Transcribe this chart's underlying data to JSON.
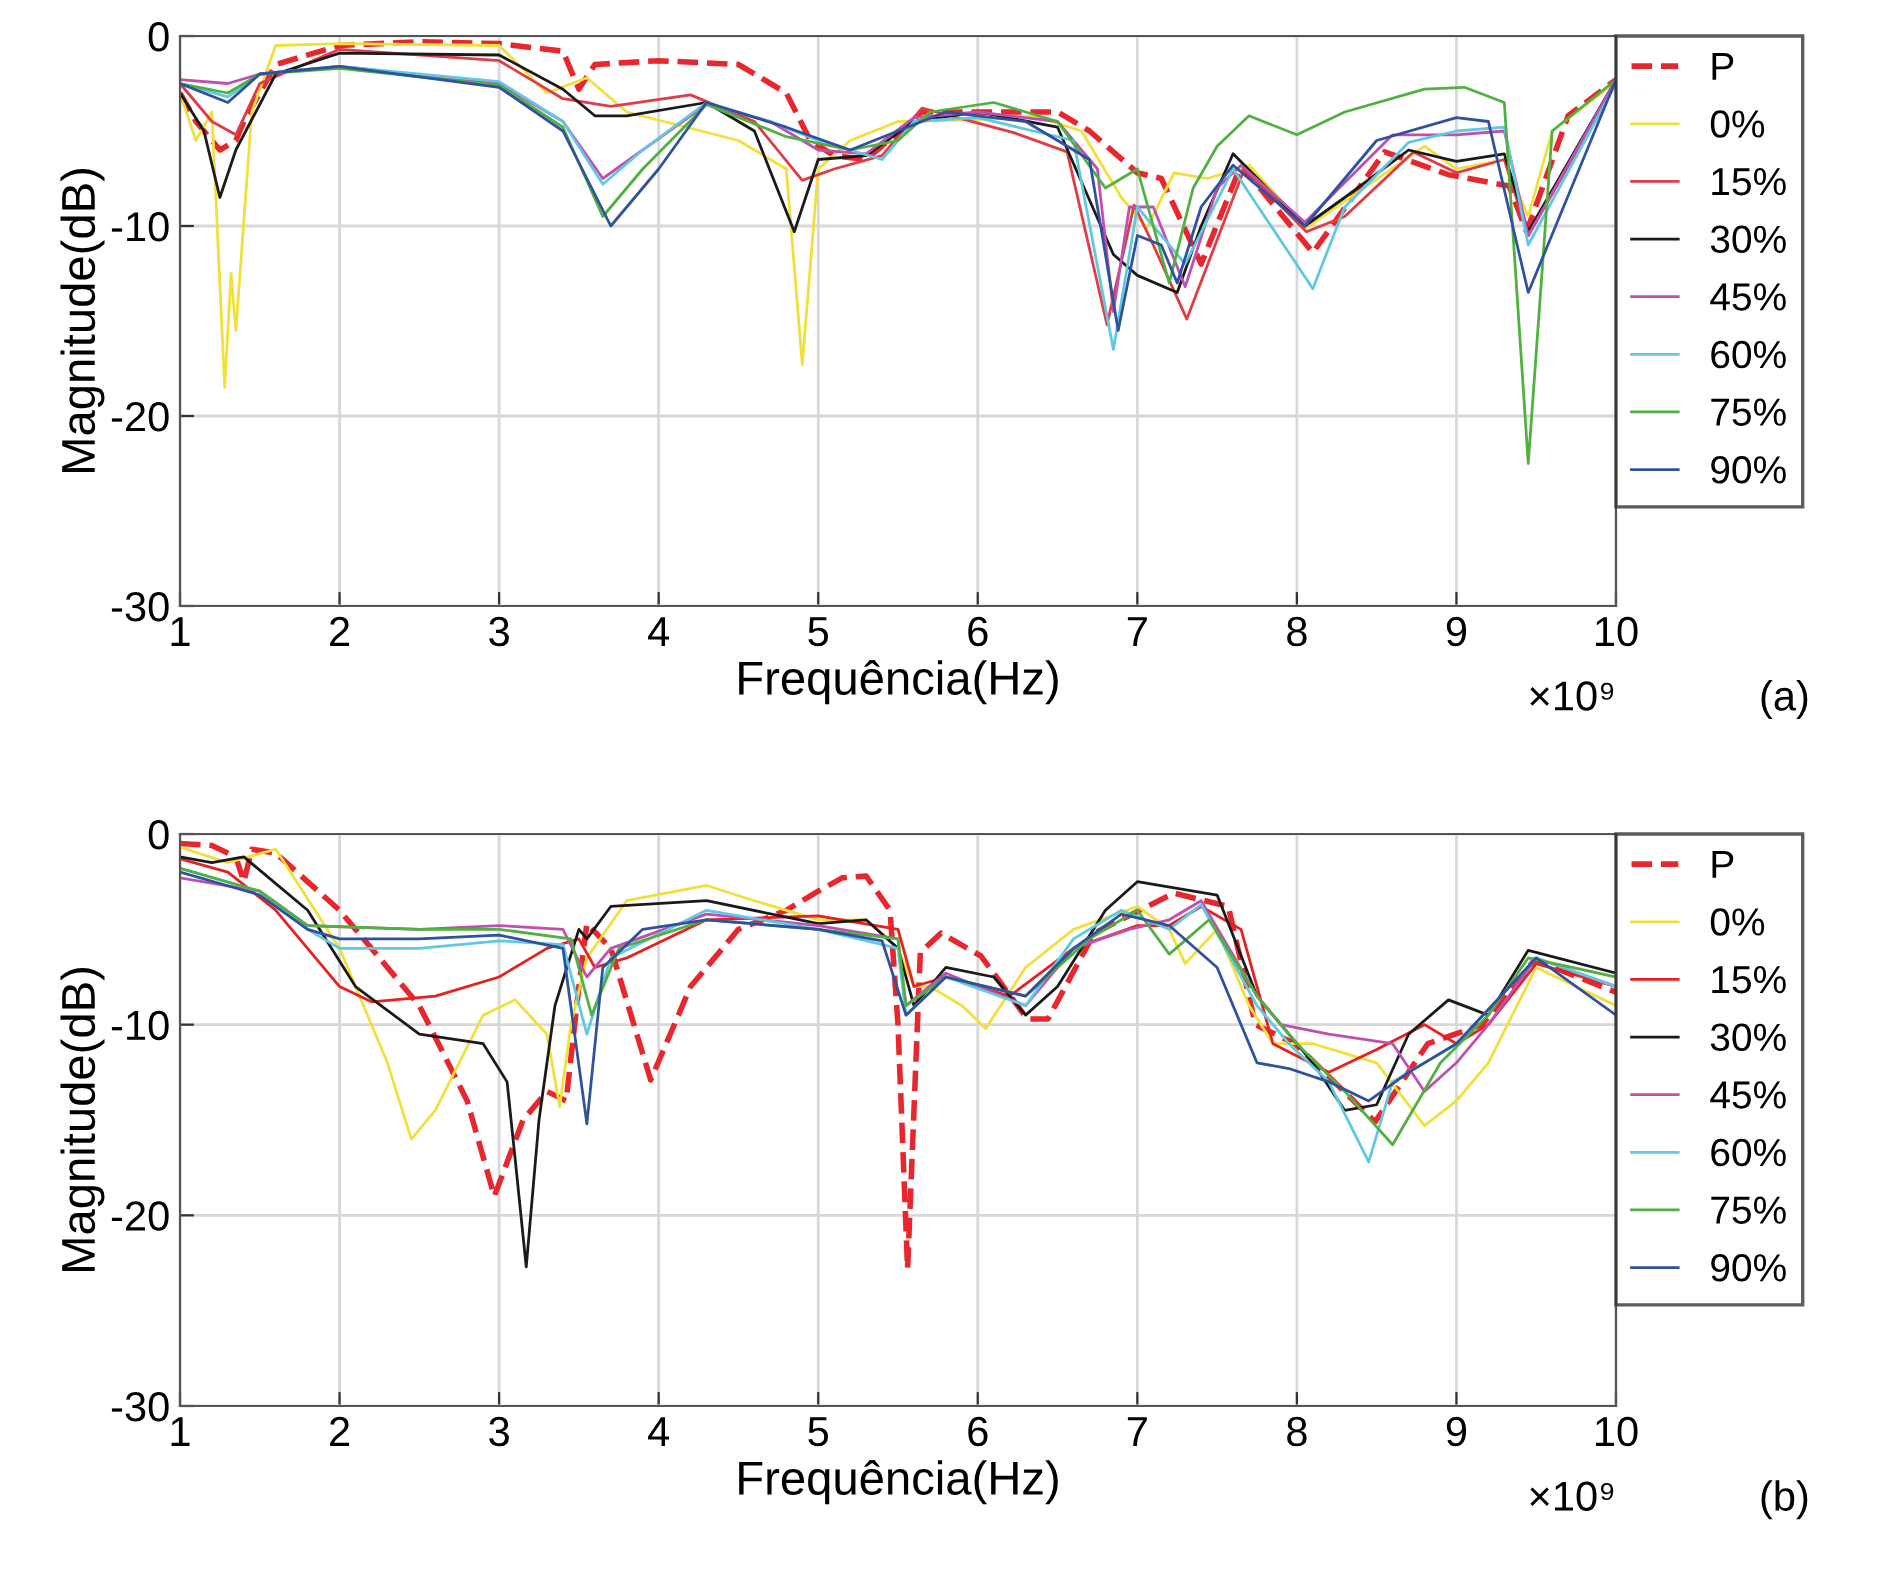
{
  "chart_data": [
    {
      "type": "line",
      "xlabel": "Frequência(Hz)",
      "ylabel": "Magnitude(dB)",
      "annotations": [
        "×10⁹",
        "(a)"
      ],
      "legend": "right",
      "grid": true,
      "marker": "none",
      "xlim": [
        1,
        10
      ],
      "ylim": [
        -30,
        0
      ],
      "yticks": [
        -30,
        -20,
        -10,
        0
      ],
      "xticks": [
        1,
        2,
        3,
        4,
        5,
        6,
        7,
        8,
        9,
        10
      ],
      "series": [
        {
          "name": "P",
          "color": "#e8262d",
          "line_style": "dashed",
          "x": [
            1.0,
            1.1,
            1.2,
            1.25,
            1.35,
            1.4,
            1.6,
            2.0,
            2.5,
            3.0,
            3.4,
            3.5,
            3.6,
            4.0,
            4.5,
            4.8,
            4.95,
            5.1,
            5.3,
            5.65,
            6.0,
            6.5,
            6.7,
            7.0,
            7.15,
            7.4,
            7.65,
            8.1,
            8.55,
            8.95,
            9.33,
            9.44,
            9.7,
            10.0
          ],
          "values": [
            -3,
            -4.5,
            -5.5,
            -6,
            -5.5,
            -4.5,
            -1.5,
            -0.5,
            -0.3,
            -0.4,
            -0.8,
            -2.8,
            -1.5,
            -1.3,
            -1.5,
            -3,
            -5.5,
            -6.3,
            -6.5,
            -4,
            -4,
            -4,
            -5,
            -7.2,
            -7.5,
            -12,
            -6.8,
            -11.4,
            -6.1,
            -7.3,
            -7.9,
            -10.3,
            -4.2,
            -2.3
          ]
        },
        {
          "name": "0%",
          "color": "#f2e03a",
          "line_style": "solid",
          "x": [
            1.0,
            1.1,
            1.2,
            1.28,
            1.32,
            1.35,
            1.45,
            1.6,
            2.0,
            3.0,
            3.3,
            3.55,
            3.8,
            4.5,
            4.8,
            4.9,
            5.0,
            5.2,
            5.5,
            6.0,
            6.35,
            6.65,
            6.9,
            7.06,
            7.23,
            7.44,
            7.7,
            8.06,
            8.8,
            9.0,
            9.3,
            9.45,
            9.6,
            10.0
          ],
          "values": [
            -3,
            -5.5,
            -4,
            -18.5,
            -12.5,
            -15.5,
            -4,
            -0.5,
            -0.4,
            -0.5,
            -3,
            -2.2,
            -4,
            -5.5,
            -7,
            -17.3,
            -7,
            -5.5,
            -4.5,
            -4.4,
            -4.2,
            -5,
            -8.5,
            -10.1,
            -7.2,
            -7.5,
            -6.8,
            -10.1,
            -5.8,
            -7,
            -6.5,
            -9.5,
            -5,
            -2.4
          ]
        },
        {
          "name": "15%",
          "color": "#e03c46",
          "line_style": "solid",
          "x": [
            1.0,
            1.2,
            1.35,
            1.5,
            2.0,
            3.0,
            3.4,
            3.7,
            4.2,
            4.6,
            4.9,
            5.1,
            5.4,
            5.65,
            6.23,
            6.56,
            6.81,
            6.98,
            7.1,
            7.31,
            7.67,
            8.06,
            8.3,
            8.73,
            9.0,
            9.3,
            9.45,
            10.0
          ],
          "values": [
            -2.5,
            -4.5,
            -5.2,
            -2.5,
            -0.7,
            -1.3,
            -3.3,
            -3.7,
            -3.1,
            -4.5,
            -7.6,
            -7,
            -6.3,
            -3.8,
            -5.1,
            -6.1,
            -15.2,
            -8.9,
            -11,
            -14.9,
            -7,
            -10.3,
            -9.5,
            -6.1,
            -7.2,
            -6.5,
            -10.5,
            -2.5
          ]
        },
        {
          "name": "30%",
          "color": "#1a1a1a",
          "line_style": "solid",
          "x": [
            1.0,
            1.15,
            1.25,
            1.35,
            1.6,
            2.0,
            3.0,
            3.4,
            3.6,
            3.8,
            4.3,
            4.6,
            4.85,
            5.0,
            5.3,
            5.6,
            6.0,
            6.5,
            6.85,
            7.0,
            7.25,
            7.4,
            7.6,
            8.05,
            8.3,
            8.7,
            9.0,
            9.3,
            9.45,
            10.0
          ],
          "values": [
            -3,
            -5,
            -8.5,
            -6,
            -2,
            -0.9,
            -1,
            -2.8,
            -4.2,
            -4.2,
            -3.5,
            -5,
            -10.3,
            -6.5,
            -6.3,
            -4.5,
            -4,
            -4.8,
            -11.5,
            -12.6,
            -13.5,
            -10,
            -6.2,
            -10,
            -8.5,
            -6,
            -6.6,
            -6.2,
            -10.3,
            -2.3
          ]
        },
        {
          "name": "45%",
          "color": "#c050b0",
          "line_style": "solid",
          "x": [
            1.0,
            1.3,
            1.5,
            2.0,
            3.0,
            3.4,
            3.65,
            3.9,
            4.3,
            4.7,
            5.0,
            5.3,
            5.6,
            6.0,
            6.5,
            6.75,
            6.85,
            6.95,
            7.1,
            7.3,
            7.5,
            7.65,
            8.05,
            8.6,
            9.0,
            9.3,
            9.45,
            10.0
          ],
          "values": [
            -2.3,
            -2.5,
            -2,
            -1.6,
            -2.5,
            -4.5,
            -7.5,
            -6,
            -3.6,
            -4.5,
            -6,
            -6.2,
            -4.3,
            -4,
            -4.5,
            -7,
            -14.5,
            -9,
            -9,
            -13.2,
            -8,
            -6.8,
            -9.8,
            -5.2,
            -5.2,
            -5,
            -10.5,
            -2.3
          ]
        },
        {
          "name": "60%",
          "color": "#60c8e0",
          "line_style": "solid",
          "x": [
            1.0,
            1.3,
            1.5,
            2.0,
            3.0,
            3.4,
            3.65,
            3.9,
            4.3,
            4.7,
            5.0,
            5.4,
            5.6,
            6.0,
            6.6,
            6.85,
            7.0,
            7.3,
            7.6,
            8.1,
            8.3,
            8.7,
            9.0,
            9.3,
            9.45,
            10.0
          ],
          "values": [
            -2.5,
            -3.2,
            -2,
            -1.6,
            -2.4,
            -4.5,
            -7.8,
            -6,
            -3.5,
            -4.5,
            -5.5,
            -6.5,
            -4.5,
            -4.3,
            -5.5,
            -16.5,
            -9,
            -12,
            -7,
            -13.3,
            -9,
            -5.6,
            -5,
            -4.8,
            -11,
            -2.5
          ]
        },
        {
          "name": "75%",
          "color": "#50b040",
          "line_style": "solid",
          "x": [
            1.0,
            1.3,
            1.5,
            2.0,
            3.0,
            3.4,
            3.65,
            3.9,
            4.3,
            4.8,
            5.2,
            5.5,
            5.7,
            6.1,
            6.5,
            6.8,
            7.0,
            7.2,
            7.35,
            7.5,
            7.7,
            8.0,
            8.3,
            8.8,
            9.05,
            9.3,
            9.45,
            9.6,
            10.0
          ],
          "values": [
            -2.5,
            -3,
            -2,
            -1.7,
            -2.6,
            -4.8,
            -9.5,
            -7,
            -3.6,
            -5.3,
            -6,
            -5.5,
            -4,
            -3.5,
            -4.5,
            -8,
            -7,
            -13,
            -8,
            -5.8,
            -4.2,
            -5.2,
            -4,
            -2.8,
            -2.7,
            -3.5,
            -22.5,
            -5,
            -2.3
          ]
        },
        {
          "name": "90%",
          "color": "#3050a0",
          "line_style": "solid",
          "x": [
            1.0,
            1.3,
            1.5,
            2.0,
            3.0,
            3.4,
            3.7,
            4.0,
            4.3,
            4.8,
            5.2,
            5.5,
            5.8,
            6.3,
            6.7,
            6.88,
            7.0,
            7.15,
            7.25,
            7.4,
            7.6,
            8.05,
            8.5,
            9.0,
            9.2,
            9.45,
            10.0
          ],
          "values": [
            -2.5,
            -3.5,
            -2,
            -1.6,
            -2.7,
            -5,
            -10,
            -7,
            -3.5,
            -4.8,
            -6,
            -5,
            -4,
            -4.5,
            -6.5,
            -15.5,
            -10.5,
            -11,
            -13,
            -9,
            -6.8,
            -10,
            -5.5,
            -4.3,
            -4.5,
            -13.5,
            -2.3
          ]
        }
      ]
    },
    {
      "type": "line",
      "xlabel": "Frequência(Hz)",
      "ylabel": "Magnitude(dB)",
      "annotations": [
        "×10⁹",
        "(b)"
      ],
      "legend": "right",
      "grid": true,
      "marker": "none",
      "xlim": [
        1,
        10
      ],
      "ylim": [
        -30,
        0
      ],
      "yticks": [
        -30,
        -20,
        -10,
        0
      ],
      "xticks": [
        1,
        2,
        3,
        4,
        5,
        6,
        7,
        8,
        9,
        10
      ],
      "series": [
        {
          "name": "P",
          "color": "#e8262d",
          "line_style": "dashed",
          "x": [
            1.0,
            1.2,
            1.35,
            1.4,
            1.45,
            1.6,
            2.0,
            2.5,
            2.8,
            2.97,
            3.15,
            3.3,
            3.42,
            3.5,
            3.55,
            3.7,
            3.95,
            4.2,
            4.5,
            4.8,
            5.0,
            5.15,
            5.3,
            5.45,
            5.5,
            5.56,
            5.64,
            5.77,
            6.02,
            6.31,
            6.44,
            6.73,
            7.23,
            7.57,
            7.74,
            7.99,
            8.49,
            8.82,
            9.16,
            9.49,
            10.0
          ],
          "values": [
            -0.5,
            -0.6,
            -1.2,
            -2.5,
            -0.8,
            -1,
            -4,
            -9,
            -14,
            -19,
            -15,
            -13.5,
            -14,
            -8,
            -4.7,
            -6,
            -12.9,
            -8,
            -5,
            -4,
            -3,
            -2.3,
            -2.2,
            -4,
            -10,
            -22.8,
            -6.2,
            -5.2,
            -6.4,
            -9.7,
            -9.7,
            -5.2,
            -3.1,
            -3.8,
            -10,
            -11,
            -15.1,
            -11,
            -10,
            -6.6,
            -8.3
          ]
        },
        {
          "name": "0%",
          "color": "#f2e03a",
          "line_style": "solid",
          "x": [
            1.0,
            1.3,
            1.6,
            2.0,
            2.3,
            2.45,
            2.6,
            2.9,
            3.1,
            3.3,
            3.38,
            3.45,
            3.55,
            3.8,
            4.3,
            4.6,
            5.0,
            5.3,
            5.5,
            5.6,
            5.7,
            5.9,
            6.05,
            6.3,
            6.6,
            7.0,
            7.2,
            7.3,
            7.5,
            7.7,
            7.85,
            8.1,
            8.5,
            8.8,
            9.0,
            9.2,
            9.5,
            10.0
          ],
          "values": [
            -0.7,
            -1.5,
            -0.8,
            -6,
            -12,
            -16,
            -14.5,
            -9.5,
            -8.7,
            -10.5,
            -14.3,
            -10,
            -6.5,
            -3.5,
            -2.7,
            -3.5,
            -4.5,
            -4.5,
            -6,
            -8,
            -8,
            -9,
            -10.2,
            -7,
            -5,
            -3.8,
            -5,
            -6.8,
            -5,
            -9,
            -11,
            -11,
            -12,
            -15.3,
            -14,
            -12,
            -7,
            -9
          ]
        },
        {
          "name": "15%",
          "color": "#e82020",
          "line_style": "solid",
          "x": [
            1.0,
            1.3,
            1.6,
            2.0,
            2.2,
            2.6,
            3.0,
            3.3,
            3.5,
            3.6,
            3.8,
            4.3,
            5.0,
            5.5,
            5.6,
            5.8,
            6.2,
            6.6,
            7.0,
            7.2,
            7.4,
            7.65,
            7.85,
            8.2,
            8.5,
            8.8,
            9.0,
            9.2,
            9.5,
            10.0
          ],
          "values": [
            -1.3,
            -2,
            -4,
            -8,
            -8.8,
            -8.5,
            -7.5,
            -6,
            -5.5,
            -7,
            -6.5,
            -4.5,
            -4.3,
            -5,
            -8,
            -7.5,
            -8.5,
            -6,
            -4.8,
            -4.8,
            -3.8,
            -5,
            -11,
            -12.5,
            -11.3,
            -10,
            -11,
            -10,
            -6.8,
            -8
          ]
        },
        {
          "name": "30%",
          "color": "#1a1a1a",
          "line_style": "solid",
          "x": [
            1.0,
            1.2,
            1.4,
            1.8,
            2.1,
            2.5,
            2.9,
            3.05,
            3.1,
            3.17,
            3.25,
            3.35,
            3.5,
            3.55,
            3.7,
            4.3,
            5.0,
            5.3,
            5.5,
            5.6,
            5.8,
            6.1,
            6.3,
            6.5,
            6.8,
            7.0,
            7.5,
            7.75,
            7.9,
            8.1,
            8.3,
            8.5,
            8.7,
            8.95,
            9.2,
            9.45,
            10.0
          ],
          "values": [
            -1.2,
            -1.5,
            -1.2,
            -4,
            -8,
            -10.5,
            -11,
            -13,
            -17,
            -22.7,
            -15,
            -9,
            -5,
            -5.5,
            -3.8,
            -3.5,
            -4.7,
            -4.5,
            -6,
            -9,
            -7,
            -7.5,
            -9.5,
            -8,
            -4,
            -2.5,
            -3.2,
            -8.5,
            -10,
            -12,
            -14.5,
            -14.2,
            -10.5,
            -8.7,
            -9.5,
            -6.1,
            -7.3
          ]
        },
        {
          "name": "45%",
          "color": "#c050b0",
          "line_style": "solid",
          "x": [
            1.0,
            1.5,
            1.8,
            2.5,
            3.0,
            3.4,
            3.55,
            3.7,
            4.3,
            5.0,
            5.5,
            5.55,
            5.8,
            6.3,
            6.6,
            6.95,
            7.2,
            7.4,
            7.75,
            7.9,
            8.2,
            8.6,
            8.8,
            9.0,
            9.2,
            9.5,
            10.0
          ],
          "values": [
            -2.3,
            -3,
            -4.8,
            -5,
            -4.8,
            -5,
            -7.5,
            -6,
            -4.2,
            -4.8,
            -5.5,
            -9,
            -7.3,
            -9,
            -6,
            -5,
            -4.5,
            -3.5,
            -8.5,
            -10,
            -10.5,
            -11,
            -13.5,
            -12,
            -10,
            -6.5,
            -8
          ]
        },
        {
          "name": "60%",
          "color": "#60c8e0",
          "line_style": "solid",
          "x": [
            1.0,
            1.5,
            1.8,
            2.0,
            2.5,
            3.0,
            3.4,
            3.55,
            3.7,
            4.3,
            5.0,
            5.5,
            5.55,
            5.8,
            6.3,
            6.6,
            6.9,
            7.2,
            7.4,
            7.75,
            7.95,
            8.2,
            8.45,
            8.6,
            9.0,
            9.5,
            10.0
          ],
          "values": [
            -1.8,
            -3,
            -5,
            -6,
            -6,
            -5.6,
            -5.8,
            -10.5,
            -6.5,
            -4,
            -5,
            -6,
            -9.5,
            -7.5,
            -9,
            -5.5,
            -4,
            -5,
            -3.7,
            -9,
            -11,
            -13,
            -17.2,
            -13,
            -11,
            -6.5,
            -8
          ]
        },
        {
          "name": "75%",
          "color": "#50b040",
          "line_style": "solid",
          "x": [
            1.0,
            1.5,
            1.8,
            2.5,
            3.0,
            3.45,
            3.58,
            3.75,
            4.3,
            5.0,
            5.5,
            5.55,
            5.8,
            6.3,
            6.7,
            7.0,
            7.2,
            7.45,
            7.75,
            8.0,
            8.3,
            8.6,
            8.9,
            9.2,
            9.45,
            10.0
          ],
          "values": [
            -1.8,
            -3,
            -4.8,
            -5,
            -5,
            -5.5,
            -9.5,
            -6,
            -4.5,
            -5,
            -5.5,
            -9,
            -7.5,
            -8.5,
            -5.5,
            -4,
            -6.3,
            -4.5,
            -8.5,
            -11,
            -13.5,
            -16.3,
            -12,
            -9.5,
            -6.5,
            -7.5
          ]
        },
        {
          "name": "90%",
          "color": "#3050a0",
          "line_style": "solid",
          "x": [
            1.0,
            1.5,
            1.8,
            2.0,
            2.5,
            3.0,
            3.4,
            3.55,
            3.65,
            3.9,
            4.3,
            5.0,
            5.4,
            5.55,
            5.8,
            6.3,
            6.6,
            6.9,
            7.2,
            7.5,
            7.75,
            7.95,
            8.2,
            8.45,
            8.7,
            9.0,
            9.5,
            10.0
          ],
          "values": [
            -2,
            -3.2,
            -5,
            -5.5,
            -5.5,
            -5.3,
            -6,
            -15.2,
            -7,
            -5,
            -4.5,
            -5,
            -5.6,
            -9.5,
            -7.5,
            -8.5,
            -6,
            -4.2,
            -4.8,
            -7,
            -12,
            -12.3,
            -13,
            -14,
            -12.5,
            -11,
            -6.5,
            -9.5
          ]
        }
      ]
    }
  ]
}
